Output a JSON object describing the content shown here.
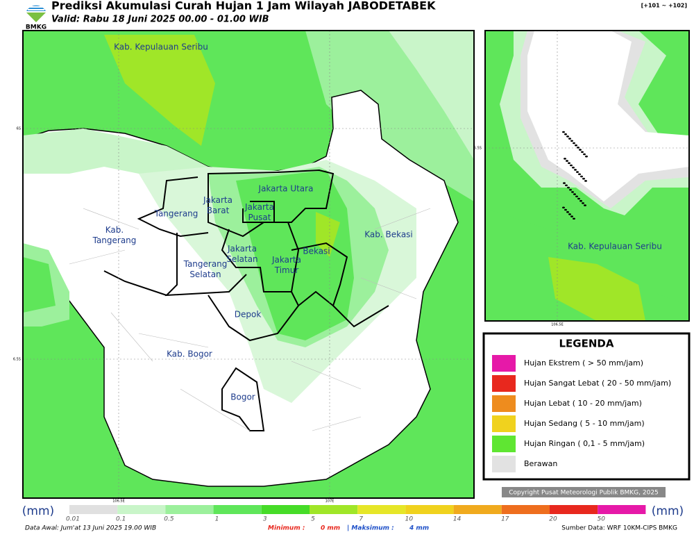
{
  "header": {
    "logo": "BMKG",
    "title": "Prediksi Akumulasi Curah Hujan 1 Jam Wilayah JABODETABEK",
    "subtitle": "Valid: Rabu 18 Juni 2025 00.00 - 01.00 WIB",
    "code": "[+101 ~ +102]"
  },
  "map": {
    "regions": [
      "Kab. Kepulauan Seribu",
      "Jakarta Utara",
      "Jakarta Barat",
      "Jakarta Pusat",
      "Tangerang",
      "Kab. Tangerang",
      "Jakarta Selatan",
      "Jakarta Timur",
      "Bekasi",
      "Kab. Bekasi",
      "Tangerang Selatan",
      "Depok",
      "Kab. Bogor",
      "Bogor"
    ],
    "lat_labels": [
      "6S",
      "6.5S"
    ],
    "lon_labels": [
      "106.5E",
      "107E"
    ]
  },
  "inset": {
    "region": "Kab. Kepulauan Seribu",
    "lat_label": "5.5S",
    "lon_label": "106.5E"
  },
  "legend": {
    "title": "LEGENDA",
    "items": [
      {
        "label": "Hujan Ekstrem ( > 50 mm/jam)",
        "color": "#e619a8"
      },
      {
        "label": "Hujan Sangat Lebat ( 20 - 50 mm/jam)",
        "color": "#e8281e"
      },
      {
        "label": "Hujan Lebat ( 10 - 20 mm/jam)",
        "color": "#ee8c1e"
      },
      {
        "label": "Hujan Sedang ( 5 - 10 mm/jam)",
        "color": "#f0d21e"
      },
      {
        "label": "Hujan Ringan ( 0,1 - 5 mm/jam)",
        "color": "#5fe632"
      },
      {
        "label": "Berawan",
        "color": "#e2e2e2"
      }
    ]
  },
  "copyright": "Copyright Pusat Meteorologi Publik BMKG, 2025",
  "colorbar": {
    "unit": "(mm)",
    "ticks": [
      "0.01",
      "0.1",
      "0.5",
      "1",
      "3",
      "5",
      "7",
      "10",
      "14",
      "17",
      "20",
      "50"
    ],
    "colors": [
      "#e0e0e0",
      "#c9f5c9",
      "#9cf09c",
      "#5fe65a",
      "#46dc28",
      "#a0e628",
      "#e6e628",
      "#f0d21e",
      "#f0aa1e",
      "#ee6e1e",
      "#e8281e",
      "#e619a8"
    ]
  },
  "footer": {
    "data_awal": "Data Awal: Jum'at 13 Juni 2025 19.00 WIB",
    "min_label": "Minimum :",
    "min_value": "0 mm",
    "max_label": "| Maksimum :",
    "max_value": "4 mm",
    "source": "Sumber Data: WRF 10KM-CIPS BMKG"
  }
}
